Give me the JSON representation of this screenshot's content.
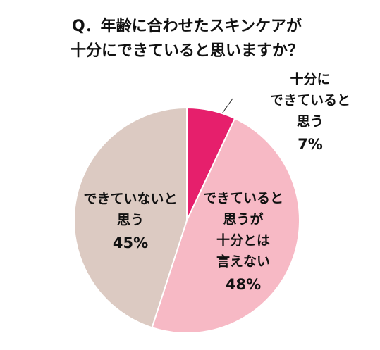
{
  "chart_data": {
    "type": "pie",
    "title": [
      "Q．年齢に合わせたスキンケアが",
      "十分にできていると思いますか？"
    ],
    "categories": [
      [
        "十分に",
        "できていると",
        "思う"
      ],
      [
        "できていると",
        "思うが",
        "十分とは",
        "言えない"
      ],
      [
        "できていないと",
        "思う"
      ]
    ],
    "values": [
      7,
      48,
      45
    ],
    "value_labels": [
      "7%",
      "48%",
      "45%"
    ],
    "colors": [
      "#e61f6c",
      "#f7b9c5",
      "#dccac2"
    ]
  }
}
